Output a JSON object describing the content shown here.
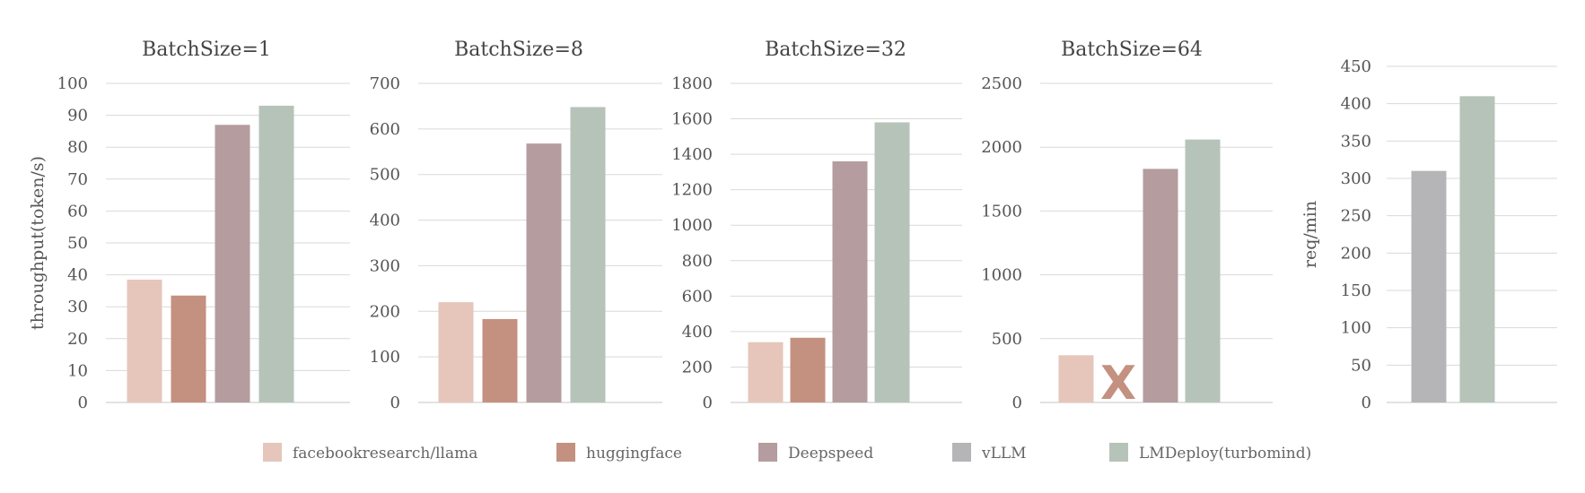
{
  "legend": [
    {
      "name": "facebookresearch/llama",
      "color": "#e6c6bb"
    },
    {
      "name": "huggingface",
      "color": "#c49080"
    },
    {
      "name": "Deepspeed",
      "color": "#b59c9f"
    },
    {
      "name": "vLLM",
      "color": "#b5b5b7"
    },
    {
      "name": "LMDeploy(turbomind)",
      "color": "#b6c3b9"
    }
  ],
  "unavailable_mark": {
    "text": "X",
    "color": "#c49080"
  },
  "chart_data": [
    {
      "type": "bar",
      "title": "BatchSize=1",
      "ylabel": "throughput(token/s)",
      "ylim": [
        0,
        100
      ],
      "yticks": [
        0,
        10,
        20,
        30,
        40,
        50,
        60,
        70,
        80,
        90,
        100
      ],
      "series": [
        {
          "name": "facebookresearch/llama",
          "value": 38.5
        },
        {
          "name": "huggingface",
          "value": 33.5
        },
        {
          "name": "Deepspeed",
          "value": 87
        },
        {
          "name": "LMDeploy(turbomind)",
          "value": 93
        }
      ]
    },
    {
      "type": "bar",
      "title": "BatchSize=8",
      "ylabel": "",
      "ylim": [
        0,
        700
      ],
      "yticks": [
        0,
        100,
        200,
        300,
        400,
        500,
        600,
        700
      ],
      "series": [
        {
          "name": "facebookresearch/llama",
          "value": 220
        },
        {
          "name": "huggingface",
          "value": 183
        },
        {
          "name": "Deepspeed",
          "value": 568
        },
        {
          "name": "LMDeploy(turbomind)",
          "value": 648
        }
      ]
    },
    {
      "type": "bar",
      "title": "BatchSize=32",
      "ylabel": "",
      "ylim": [
        0,
        1800
      ],
      "yticks": [
        0,
        200,
        400,
        600,
        800,
        1000,
        1200,
        1400,
        1600,
        1800
      ],
      "series": [
        {
          "name": "facebookresearch/llama",
          "value": 340
        },
        {
          "name": "huggingface",
          "value": 365
        },
        {
          "name": "Deepspeed",
          "value": 1360
        },
        {
          "name": "LMDeploy(turbomind)",
          "value": 1580
        }
      ]
    },
    {
      "type": "bar",
      "title": "BatchSize=64",
      "ylabel": "",
      "ylim": [
        0,
        2500
      ],
      "yticks": [
        0,
        500,
        1000,
        1500,
        2000,
        2500
      ],
      "series": [
        {
          "name": "facebookresearch/llama",
          "value": 370
        },
        {
          "name": "huggingface",
          "value": null,
          "unavailable": true
        },
        {
          "name": "Deepspeed",
          "value": 1830
        },
        {
          "name": "LMDeploy(turbomind)",
          "value": 2060
        }
      ]
    },
    {
      "type": "bar",
      "title": "",
      "ylabel": "req/min",
      "ylim": [
        0,
        450
      ],
      "yticks": [
        0,
        50,
        100,
        150,
        200,
        250,
        300,
        350,
        400,
        450
      ],
      "series": [
        {
          "name": "vLLM",
          "value": 310
        },
        {
          "name": "LMDeploy(turbomind)",
          "value": 410
        }
      ]
    }
  ]
}
